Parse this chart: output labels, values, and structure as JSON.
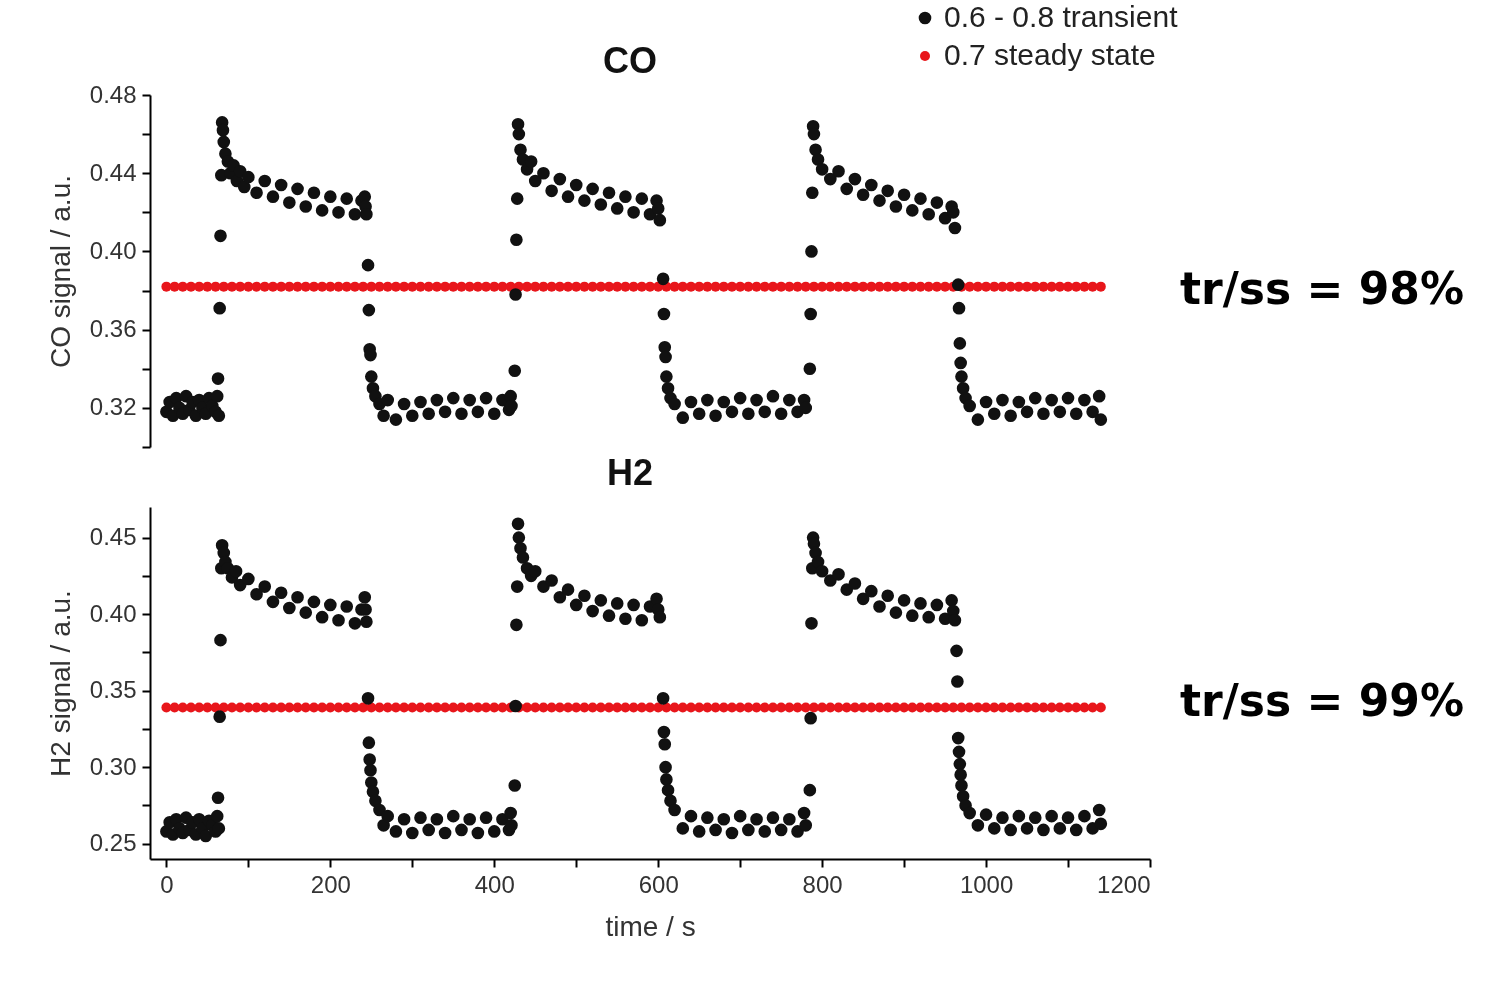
{
  "chart_data": [
    {
      "type": "scatter",
      "title": "CO",
      "ylabel": "CO signal / a.u.",
      "xlim": [
        -20,
        1200
      ],
      "ylim": [
        0.3,
        0.48
      ],
      "yticks": [
        {
          "value": 0.3,
          "label": null
        },
        0.32,
        {
          "value": 0.34,
          "label": null
        },
        0.36,
        {
          "value": 0.38,
          "label": null
        },
        {
          "value": 0.4,
          "label": "0.40"
        },
        {
          "value": 0.42,
          "label": null
        },
        0.44,
        {
          "value": 0.46,
          "label": null
        },
        0.48
      ],
      "tick_labels": "y",
      "marker": "circle",
      "legend": "top right",
      "annotations": [
        "tr/ss = 98%"
      ],
      "series": [
        {
          "name": "0.6 - 0.8 transient",
          "color": "#111111",
          "x": [
            0,
            4,
            8,
            12,
            16,
            20,
            24,
            28,
            32,
            36,
            40,
            44,
            48,
            52,
            56,
            60,
            62,
            63,
            64,
            65,
            66,
            67,
            68,
            69,
            70,
            72,
            75,
            78,
            82,
            86,
            90,
            95,
            100,
            110,
            120,
            130,
            140,
            150,
            160,
            170,
            180,
            190,
            200,
            210,
            220,
            230,
            238,
            242,
            243,
            244,
            246,
            247,
            248,
            249,
            250,
            252,
            255,
            260,
            265,
            270,
            280,
            290,
            300,
            310,
            320,
            330,
            340,
            350,
            360,
            370,
            380,
            390,
            400,
            410,
            418,
            420,
            421,
            425,
            426,
            427,
            428,
            429,
            430,
            432,
            435,
            440,
            445,
            450,
            460,
            470,
            480,
            490,
            500,
            510,
            520,
            530,
            540,
            550,
            560,
            570,
            580,
            590,
            598,
            600,
            602,
            606,
            607,
            608,
            609,
            610,
            612,
            615,
            620,
            630,
            640,
            650,
            660,
            670,
            680,
            690,
            700,
            710,
            720,
            730,
            740,
            750,
            760,
            770,
            778,
            780,
            785,
            786,
            787,
            788,
            789,
            790,
            792,
            795,
            800,
            810,
            820,
            830,
            840,
            850,
            860,
            870,
            880,
            890,
            900,
            910,
            920,
            930,
            940,
            950,
            958,
            960,
            962,
            966,
            967,
            968,
            969,
            970,
            972,
            975,
            980,
            990,
            1000,
            1010,
            1020,
            1030,
            1040,
            1050,
            1060,
            1070,
            1080,
            1090,
            1100,
            1110,
            1120,
            1130,
            1138,
            1140
          ],
          "values": [
            0.318,
            0.323,
            0.316,
            0.325,
            0.32,
            0.317,
            0.326,
            0.319,
            0.323,
            0.316,
            0.324,
            0.32,
            0.317,
            0.325,
            0.321,
            0.318,
            0.326,
            0.335,
            0.316,
            0.371,
            0.408,
            0.439,
            0.466,
            0.462,
            0.456,
            0.45,
            0.446,
            0.44,
            0.444,
            0.436,
            0.441,
            0.433,
            0.438,
            0.43,
            0.436,
            0.428,
            0.434,
            0.425,
            0.432,
            0.423,
            0.43,
            0.421,
            0.428,
            0.42,
            0.427,
            0.419,
            0.426,
            0.428,
            0.423,
            0.419,
            0.393,
            0.37,
            0.35,
            0.347,
            0.336,
            0.33,
            0.326,
            0.322,
            0.316,
            0.324,
            0.314,
            0.322,
            0.316,
            0.323,
            0.317,
            0.324,
            0.318,
            0.325,
            0.317,
            0.324,
            0.318,
            0.325,
            0.317,
            0.324,
            0.319,
            0.326,
            0.321,
            0.339,
            0.378,
            0.406,
            0.427,
            0.465,
            0.46,
            0.452,
            0.447,
            0.442,
            0.446,
            0.436,
            0.44,
            0.431,
            0.437,
            0.428,
            0.434,
            0.426,
            0.432,
            0.424,
            0.43,
            0.422,
            0.428,
            0.42,
            0.427,
            0.419,
            0.426,
            0.422,
            0.416,
            0.386,
            0.368,
            0.351,
            0.346,
            0.336,
            0.33,
            0.325,
            0.322,
            0.315,
            0.323,
            0.317,
            0.324,
            0.316,
            0.323,
            0.318,
            0.325,
            0.317,
            0.324,
            0.318,
            0.326,
            0.317,
            0.324,
            0.318,
            0.324,
            0.32,
            0.34,
            0.368,
            0.4,
            0.43,
            0.464,
            0.46,
            0.452,
            0.447,
            0.442,
            0.437,
            0.441,
            0.432,
            0.437,
            0.429,
            0.434,
            0.426,
            0.431,
            0.423,
            0.429,
            0.421,
            0.427,
            0.419,
            0.425,
            0.417,
            0.423,
            0.42,
            0.412,
            0.383,
            0.371,
            0.353,
            0.343,
            0.336,
            0.33,
            0.325,
            0.321,
            0.314,
            0.323,
            0.317,
            0.324,
            0.316,
            0.323,
            0.318,
            0.325,
            0.317,
            0.324,
            0.318,
            0.325,
            0.317,
            0.324,
            0.318,
            0.326,
            0.314
          ]
        },
        {
          "name": "0.7 steady state",
          "color": "#e8161b",
          "x": [
            0,
            10,
            20,
            30,
            40,
            50,
            60,
            70,
            80,
            90,
            100,
            110,
            120,
            130,
            140,
            150,
            160,
            170,
            180,
            190,
            200,
            210,
            220,
            230,
            240,
            250,
            260,
            270,
            280,
            290,
            300,
            310,
            320,
            330,
            340,
            350,
            360,
            370,
            380,
            390,
            400,
            410,
            420,
            430,
            440,
            450,
            460,
            470,
            480,
            490,
            500,
            510,
            520,
            530,
            540,
            550,
            560,
            570,
            580,
            590,
            600,
            610,
            620,
            630,
            640,
            650,
            660,
            670,
            680,
            690,
            700,
            710,
            720,
            730,
            740,
            750,
            760,
            770,
            780,
            790,
            800,
            810,
            820,
            830,
            840,
            850,
            860,
            870,
            880,
            890,
            900,
            910,
            920,
            930,
            940,
            950,
            960,
            970,
            980,
            990,
            1000,
            1010,
            1020,
            1030,
            1040,
            1050,
            1060,
            1070,
            1080,
            1090,
            1100,
            1110,
            1120,
            1130,
            1140
          ],
          "values": [
            0.382,
            0.382,
            0.382,
            0.382,
            0.382,
            0.382,
            0.382,
            0.382,
            0.382,
            0.382,
            0.382,
            0.382,
            0.382,
            0.382,
            0.382,
            0.382,
            0.382,
            0.382,
            0.382,
            0.382,
            0.382,
            0.382,
            0.382,
            0.382,
            0.382,
            0.382,
            0.382,
            0.382,
            0.382,
            0.382,
            0.382,
            0.382,
            0.382,
            0.382,
            0.382,
            0.382,
            0.382,
            0.382,
            0.382,
            0.382,
            0.382,
            0.382,
            0.382,
            0.382,
            0.382,
            0.382,
            0.382,
            0.382,
            0.382,
            0.382,
            0.382,
            0.382,
            0.382,
            0.382,
            0.382,
            0.382,
            0.382,
            0.382,
            0.382,
            0.382,
            0.382,
            0.382,
            0.382,
            0.382,
            0.382,
            0.382,
            0.382,
            0.382,
            0.382,
            0.382,
            0.382,
            0.382,
            0.382,
            0.382,
            0.382,
            0.382,
            0.382,
            0.382,
            0.382,
            0.382,
            0.382,
            0.382,
            0.382,
            0.382,
            0.382,
            0.382,
            0.382,
            0.382,
            0.382,
            0.382,
            0.382,
            0.382,
            0.382,
            0.382,
            0.382,
            0.382,
            0.382,
            0.382,
            0.382,
            0.382,
            0.382,
            0.382,
            0.382,
            0.382,
            0.382,
            0.382,
            0.382,
            0.382,
            0.382,
            0.382,
            0.382,
            0.382,
            0.382,
            0.382,
            0.382
          ]
        }
      ]
    },
    {
      "type": "scatter",
      "title": "H2",
      "xlabel": "time / s",
      "ylabel": "H2 signal / a.u.",
      "xlim": [
        -20,
        1200
      ],
      "ylim": [
        0.24,
        0.47
      ],
      "xticks": [
        0,
        {
          "value": 100,
          "label": null
        },
        200,
        {
          "value": 300,
          "label": null
        },
        400,
        {
          "value": 500,
          "label": null
        },
        600,
        {
          "value": 700,
          "label": null
        },
        800,
        {
          "value": 900,
          "label": null
        },
        1000,
        {
          "value": 1100,
          "label": null
        },
        1200
      ],
      "yticks": [
        0.25,
        {
          "value": 0.275,
          "label": null
        },
        {
          "value": 0.3,
          "label": "0.30"
        },
        {
          "value": 0.325,
          "label": null
        },
        0.35,
        {
          "value": 0.375,
          "label": null
        },
        {
          "value": 0.4,
          "label": "0.40"
        },
        {
          "value": 0.425,
          "label": null
        },
        0.45
      ],
      "marker": "circle",
      "annotations": [
        "tr/ss = 99%"
      ],
      "series": [
        {
          "color": "#111111",
          "x": [
            0,
            4,
            8,
            12,
            16,
            20,
            24,
            28,
            32,
            36,
            40,
            44,
            48,
            52,
            56,
            60,
            62,
            63,
            64,
            65,
            66,
            67,
            68,
            70,
            72,
            75,
            80,
            85,
            90,
            100,
            110,
            120,
            130,
            140,
            150,
            160,
            170,
            180,
            190,
            200,
            210,
            220,
            230,
            238,
            242,
            243,
            244,
            246,
            247,
            248,
            249,
            250,
            252,
            255,
            260,
            265,
            270,
            280,
            290,
            300,
            310,
            320,
            330,
            340,
            350,
            360,
            370,
            380,
            390,
            400,
            410,
            418,
            420,
            421,
            425,
            426,
            427,
            428,
            429,
            430,
            432,
            435,
            440,
            445,
            450,
            460,
            470,
            480,
            490,
            500,
            510,
            520,
            530,
            540,
            550,
            560,
            570,
            580,
            590,
            598,
            600,
            602,
            606,
            607,
            608,
            609,
            610,
            612,
            615,
            620,
            630,
            640,
            650,
            660,
            670,
            680,
            690,
            700,
            710,
            720,
            730,
            740,
            750,
            760,
            770,
            778,
            780,
            785,
            786,
            787,
            788,
            789,
            790,
            792,
            795,
            800,
            810,
            820,
            830,
            840,
            850,
            860,
            870,
            880,
            890,
            900,
            910,
            920,
            930,
            940,
            950,
            958,
            960,
            962,
            964,
            965,
            966,
            967,
            968,
            969,
            970,
            972,
            975,
            980,
            990,
            1000,
            1010,
            1020,
            1030,
            1040,
            1050,
            1060,
            1070,
            1080,
            1090,
            1100,
            1110,
            1120,
            1130,
            1138,
            1140
          ],
          "values": [
            0.258,
            0.264,
            0.256,
            0.266,
            0.26,
            0.257,
            0.267,
            0.259,
            0.264,
            0.256,
            0.266,
            0.26,
            0.255,
            0.265,
            0.262,
            0.258,
            0.268,
            0.28,
            0.26,
            0.333,
            0.383,
            0.43,
            0.445,
            0.44,
            0.434,
            0.43,
            0.424,
            0.428,
            0.419,
            0.423,
            0.413,
            0.418,
            0.408,
            0.414,
            0.404,
            0.411,
            0.401,
            0.408,
            0.398,
            0.406,
            0.396,
            0.405,
            0.394,
            0.403,
            0.411,
            0.403,
            0.395,
            0.345,
            0.316,
            0.305,
            0.298,
            0.29,
            0.284,
            0.278,
            0.272,
            0.262,
            0.268,
            0.258,
            0.266,
            0.257,
            0.267,
            0.259,
            0.266,
            0.257,
            0.268,
            0.259,
            0.266,
            0.257,
            0.267,
            0.258,
            0.266,
            0.259,
            0.27,
            0.262,
            0.288,
            0.34,
            0.393,
            0.418,
            0.459,
            0.45,
            0.443,
            0.437,
            0.43,
            0.425,
            0.428,
            0.418,
            0.422,
            0.411,
            0.416,
            0.406,
            0.412,
            0.402,
            0.409,
            0.399,
            0.407,
            0.397,
            0.406,
            0.396,
            0.405,
            0.41,
            0.403,
            0.398,
            0.345,
            0.323,
            0.315,
            0.3,
            0.292,
            0.285,
            0.278,
            0.272,
            0.26,
            0.268,
            0.258,
            0.267,
            0.259,
            0.266,
            0.257,
            0.268,
            0.259,
            0.266,
            0.258,
            0.267,
            0.259,
            0.266,
            0.258,
            0.27,
            0.262,
            0.285,
            0.332,
            0.394,
            0.43,
            0.45,
            0.446,
            0.44,
            0.434,
            0.428,
            0.422,
            0.426,
            0.416,
            0.42,
            0.41,
            0.415,
            0.405,
            0.412,
            0.401,
            0.409,
            0.399,
            0.407,
            0.398,
            0.406,
            0.397,
            0.409,
            0.402,
            0.396,
            0.376,
            0.356,
            0.319,
            0.31,
            0.302,
            0.295,
            0.288,
            0.281,
            0.275,
            0.27,
            0.262,
            0.269,
            0.26,
            0.267,
            0.259,
            0.268,
            0.26,
            0.267,
            0.259,
            0.268,
            0.26,
            0.267,
            0.259,
            0.268,
            0.26,
            0.272,
            0.263
          ]
        },
        {
          "color": "#e8161b",
          "x": [
            0,
            10,
            20,
            30,
            40,
            50,
            60,
            70,
            80,
            90,
            100,
            110,
            120,
            130,
            140,
            150,
            160,
            170,
            180,
            190,
            200,
            210,
            220,
            230,
            240,
            250,
            260,
            270,
            280,
            290,
            300,
            310,
            320,
            330,
            340,
            350,
            360,
            370,
            380,
            390,
            400,
            410,
            420,
            430,
            440,
            450,
            460,
            470,
            480,
            490,
            500,
            510,
            520,
            530,
            540,
            550,
            560,
            570,
            580,
            590,
            600,
            610,
            620,
            630,
            640,
            650,
            660,
            670,
            680,
            690,
            700,
            710,
            720,
            730,
            740,
            750,
            760,
            770,
            780,
            790,
            800,
            810,
            820,
            830,
            840,
            850,
            860,
            870,
            880,
            890,
            900,
            910,
            920,
            930,
            940,
            950,
            960,
            970,
            980,
            990,
            1000,
            1010,
            1020,
            1030,
            1040,
            1050,
            1060,
            1070,
            1080,
            1090,
            1100,
            1110,
            1120,
            1130,
            1140
          ],
          "values": [
            0.339,
            0.339,
            0.339,
            0.339,
            0.339,
            0.339,
            0.339,
            0.339,
            0.339,
            0.339,
            0.339,
            0.339,
            0.339,
            0.339,
            0.339,
            0.339,
            0.339,
            0.339,
            0.339,
            0.339,
            0.339,
            0.339,
            0.339,
            0.339,
            0.339,
            0.339,
            0.339,
            0.339,
            0.339,
            0.339,
            0.339,
            0.339,
            0.339,
            0.339,
            0.339,
            0.339,
            0.339,
            0.339,
            0.339,
            0.339,
            0.339,
            0.339,
            0.339,
            0.339,
            0.339,
            0.339,
            0.339,
            0.339,
            0.339,
            0.339,
            0.339,
            0.339,
            0.339,
            0.339,
            0.339,
            0.339,
            0.339,
            0.339,
            0.339,
            0.339,
            0.339,
            0.339,
            0.339,
            0.339,
            0.339,
            0.339,
            0.339,
            0.339,
            0.339,
            0.339,
            0.339,
            0.339,
            0.339,
            0.339,
            0.339,
            0.339,
            0.339,
            0.339,
            0.339,
            0.339,
            0.339,
            0.339,
            0.339,
            0.339,
            0.339,
            0.339,
            0.339,
            0.339,
            0.339,
            0.339,
            0.339,
            0.339,
            0.339,
            0.339,
            0.339,
            0.339,
            0.339,
            0.339,
            0.339,
            0.339,
            0.339,
            0.339,
            0.339,
            0.339,
            0.339,
            0.339,
            0.339,
            0.339,
            0.339,
            0.339,
            0.339,
            0.339,
            0.339,
            0.339,
            0.339
          ]
        }
      ]
    }
  ]
}
